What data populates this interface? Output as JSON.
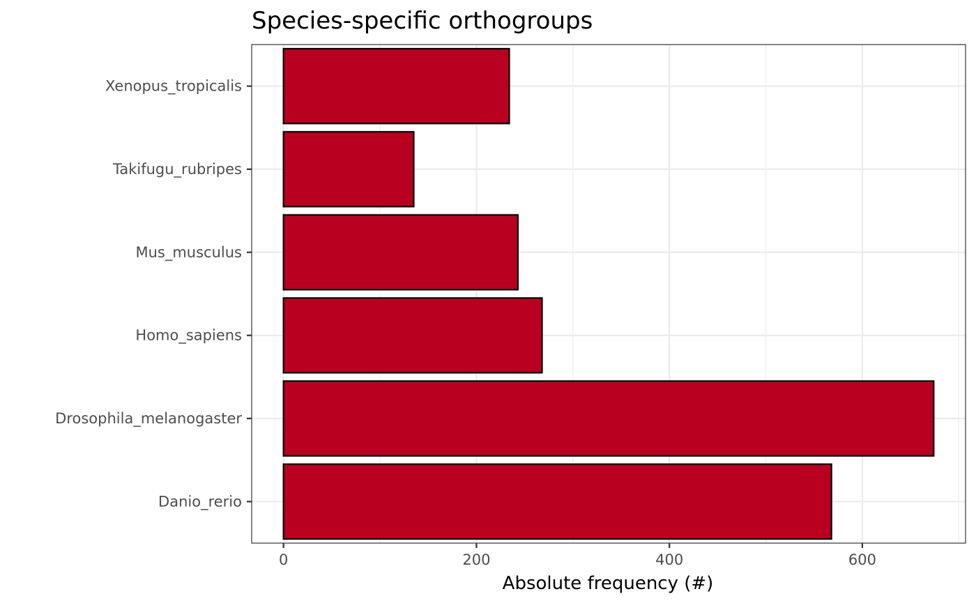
{
  "chart_data": {
    "type": "bar",
    "orientation": "horizontal",
    "title": "Species-specific orthogroups",
    "xlabel": "Absolute frequency (#)",
    "ylabel": "",
    "categories": [
      "Xenopus_tropicalis",
      "Takifugu_rubripes",
      "Mus_musculus",
      "Homo_sapiens",
      "Drosophila_melanogaster",
      "Danio_rerio"
    ],
    "values": [
      234,
      135,
      243,
      268,
      674,
      568
    ],
    "xlim": [
      -33,
      707
    ],
    "xticks": [
      0,
      200,
      400,
      600
    ],
    "xtick_labels": [
      "0",
      "200",
      "400",
      "600"
    ],
    "grid": true,
    "bar_fill": "#BA0020",
    "bar_stroke": "#000000"
  }
}
